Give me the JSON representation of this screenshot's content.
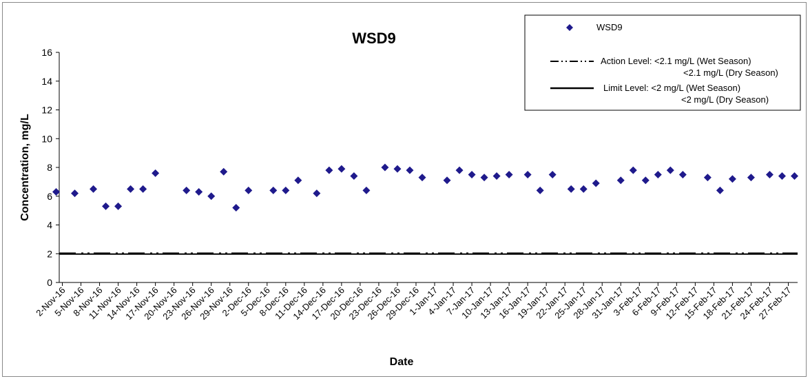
{
  "chart_data": {
    "type": "scatter",
    "title": "WSD9",
    "xlabel": "Date",
    "ylabel": "Concentration, mg/L",
    "ylim": [
      0,
      16
    ],
    "yticks": [
      0,
      2,
      4,
      6,
      8,
      10,
      12,
      14,
      16
    ],
    "grid": false,
    "legend_position": "top-right",
    "x_tick_labels": [
      "2-Nov-16",
      "5-Nov-16",
      "8-Nov-16",
      "11-Nov-16",
      "14-Nov-16",
      "17-Nov-16",
      "20-Nov-16",
      "23-Nov-16",
      "26-Nov-16",
      "29-Nov-16",
      "2-Dec-16",
      "5-Dec-16",
      "8-Dec-16",
      "11-Dec-16",
      "14-Dec-16",
      "17-Dec-16",
      "20-Dec-16",
      "23-Dec-16",
      "26-Dec-16",
      "29-Dec-16",
      "1-Jan-17",
      "4-Jan-17",
      "7-Jan-17",
      "10-Jan-17",
      "13-Jan-17",
      "16-Jan-17",
      "19-Jan-17",
      "22-Jan-17",
      "25-Jan-17",
      "28-Jan-17",
      "31-Jan-17",
      "3-Feb-17",
      "6-Feb-17",
      "9-Feb-17",
      "12-Feb-17",
      "15-Feb-17",
      "18-Feb-17",
      "21-Feb-17",
      "24-Feb-17",
      "27-Feb-17"
    ],
    "series": [
      {
        "name": "WSD9",
        "color": "#1f1a8c",
        "marker": "diamond",
        "points": [
          {
            "x": "1-Nov-16",
            "y": 6.3
          },
          {
            "x": "4-Nov-16",
            "y": 6.2
          },
          {
            "x": "7-Nov-16",
            "y": 6.5
          },
          {
            "x": "9-Nov-16",
            "y": 5.3
          },
          {
            "x": "11-Nov-16",
            "y": 5.3
          },
          {
            "x": "13-Nov-16",
            "y": 6.5
          },
          {
            "x": "15-Nov-16",
            "y": 6.5
          },
          {
            "x": "17-Nov-16",
            "y": 7.6
          },
          {
            "x": "22-Nov-16",
            "y": 6.4
          },
          {
            "x": "24-Nov-16",
            "y": 6.3
          },
          {
            "x": "26-Nov-16",
            "y": 6.0
          },
          {
            "x": "28-Nov-16",
            "y": 7.7
          },
          {
            "x": "30-Nov-16",
            "y": 5.2
          },
          {
            "x": "2-Dec-16",
            "y": 6.4
          },
          {
            "x": "6-Dec-16",
            "y": 6.4
          },
          {
            "x": "8-Dec-16",
            "y": 6.4
          },
          {
            "x": "10-Dec-16",
            "y": 7.1
          },
          {
            "x": "13-Dec-16",
            "y": 6.2
          },
          {
            "x": "15-Dec-16",
            "y": 7.8
          },
          {
            "x": "17-Dec-16",
            "y": 7.9
          },
          {
            "x": "19-Dec-16",
            "y": 7.4
          },
          {
            "x": "21-Dec-16",
            "y": 6.4
          },
          {
            "x": "24-Dec-16",
            "y": 8.0
          },
          {
            "x": "26-Dec-16",
            "y": 7.9
          },
          {
            "x": "28-Dec-16",
            "y": 7.8
          },
          {
            "x": "30-Dec-16",
            "y": 7.3
          },
          {
            "x": "3-Jan-17",
            "y": 7.1
          },
          {
            "x": "5-Jan-17",
            "y": 7.8
          },
          {
            "x": "7-Jan-17",
            "y": 7.5
          },
          {
            "x": "9-Jan-17",
            "y": 7.3
          },
          {
            "x": "11-Jan-17",
            "y": 7.4
          },
          {
            "x": "13-Jan-17",
            "y": 7.5
          },
          {
            "x": "16-Jan-17",
            "y": 7.5
          },
          {
            "x": "18-Jan-17",
            "y": 6.4
          },
          {
            "x": "20-Jan-17",
            "y": 7.5
          },
          {
            "x": "23-Jan-17",
            "y": 6.5
          },
          {
            "x": "25-Jan-17",
            "y": 6.5
          },
          {
            "x": "27-Jan-17",
            "y": 6.9
          },
          {
            "x": "31-Jan-17",
            "y": 7.1
          },
          {
            "x": "2-Feb-17",
            "y": 7.8
          },
          {
            "x": "4-Feb-17",
            "y": 7.1
          },
          {
            "x": "6-Feb-17",
            "y": 7.5
          },
          {
            "x": "8-Feb-17",
            "y": 7.8
          },
          {
            "x": "10-Feb-17",
            "y": 7.5
          },
          {
            "x": "14-Feb-17",
            "y": 7.3
          },
          {
            "x": "16-Feb-17",
            "y": 6.4
          },
          {
            "x": "18-Feb-17",
            "y": 7.2
          },
          {
            "x": "21-Feb-17",
            "y": 7.3
          },
          {
            "x": "24-Feb-17",
            "y": 7.5
          },
          {
            "x": "26-Feb-17",
            "y": 7.4
          },
          {
            "x": "28-Feb-17",
            "y": 7.4
          }
        ]
      },
      {
        "name": "Action Level",
        "type": "hline",
        "style": "dash-dot-dot",
        "y": 2.1,
        "color": "#000000"
      },
      {
        "name": "Limit Level",
        "type": "hline",
        "style": "solid",
        "y": 2.0,
        "color": "#000000"
      }
    ],
    "legend": [
      {
        "marker": "diamond",
        "lines": [
          "WSD9"
        ]
      },
      {
        "marker": "dash-dot-dot-line",
        "lines": [
          "Action Level:  <2.1 mg/L (Wet Season)",
          "<2.1 mg/L (Dry Season)"
        ]
      },
      {
        "marker": "solid-line",
        "lines": [
          "Limit Level:  <2 mg/L (Wet Season)",
          "<2 mg/L (Dry Season)"
        ]
      }
    ]
  }
}
